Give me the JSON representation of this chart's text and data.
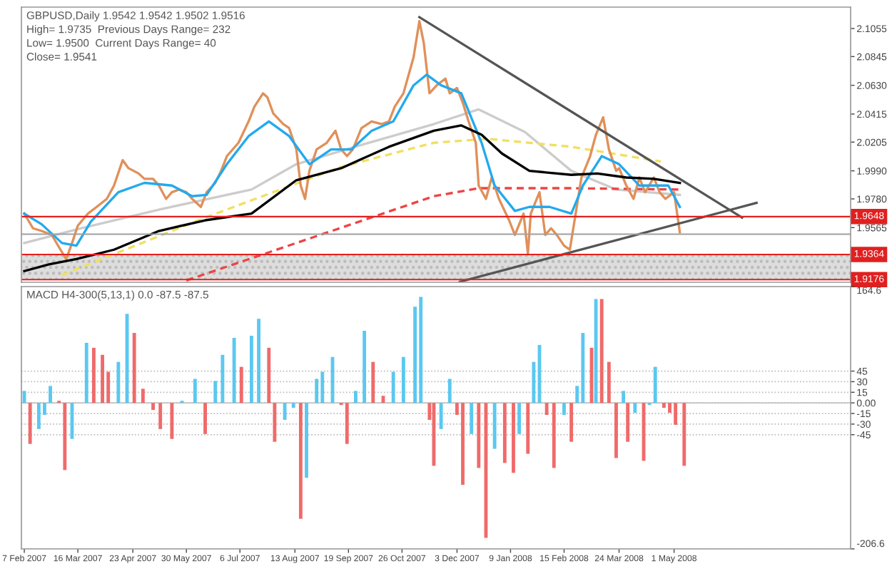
{
  "chart_data": [
    {
      "type": "line",
      "title": "GBPUSD,Daily 1.9542 1.9542 1.9502 1.9516",
      "annotations": [
        "High= 1.9735  Previous Days Range= 232",
        "Low= 1.9500  Current Days Range= 40",
        "Close= 1.9541"
      ],
      "xlim": [
        "2007-02-05",
        "2008-08-31"
      ],
      "ylim": [
        1.9156,
        2.1215
      ],
      "yticks": [
        2.1055,
        2.0845,
        {
          "value": 2.063,
          "label": "2.0630"
        },
        2.0415,
        2.0205,
        {
          "value": 1.999,
          "label": "1.9990"
        },
        {
          "value": 1.978,
          "label": "1.9780"
        },
        1.9565
      ],
      "tick_labels": "y",
      "grid": false,
      "marker": "none",
      "bands": [
        {
          "axis": "y",
          "from": 1.9176,
          "to": 1.9364,
          "color": "#dddddd"
        }
      ],
      "ref_lines": [
        {
          "axis": "y",
          "value": 1.9648,
          "label": "1.9648",
          "color": "#e02020"
        },
        {
          "axis": "y",
          "value": 1.9364,
          "label": "1.9364",
          "color": "#e02020"
        },
        {
          "axis": "y",
          "value": 1.9176,
          "label": "1.9176",
          "color": "#e02020"
        },
        {
          "axis": "y",
          "value": 1.9516,
          "color": "#a0a0a0"
        }
      ],
      "series": [
        {
          "color": "#cccccc",
          "line_style": "solid",
          "x": [
            "2007-02-07",
            "2007-03-18",
            "2007-05-11",
            "2007-07-14",
            "2007-08-14",
            "2007-10-03",
            "2007-11-17",
            "2007-12-18",
            "2008-01-19",
            "2008-02-20",
            "2008-03-22",
            "2008-05-05"
          ],
          "values": [
            1.945,
            1.956,
            1.97,
            1.985,
            2.004,
            2.02,
            2.034,
            2.045,
            2.028,
            1.999,
            1.985,
            1.981
          ]
        },
        {
          "color": "#f0e060",
          "line_style": "dashed",
          "x": [
            "2007-03-05",
            "2007-06-12",
            "2007-09-14",
            "2007-11-17",
            "2007-12-24",
            "2008-02-20",
            "2008-04-22"
          ],
          "values": [
            1.921,
            1.964,
            2.002,
            2.02,
            2.023,
            2.017,
            2.006
          ]
        },
        {
          "color": "#ee4444",
          "line_style": "dashed",
          "x": [
            "2007-05-30",
            "2007-08-14",
            "2007-11-17",
            "2007-12-18",
            "2008-02-20",
            "2008-05-05"
          ],
          "values": [
            1.917,
            1.945,
            1.98,
            1.986,
            1.986,
            1.985
          ]
        },
        {
          "color": "#e0905a",
          "line_style": "solid",
          "x": [
            "2007-02-07",
            "2007-02-13",
            "2007-02-19",
            "2007-02-26",
            "2007-03-04",
            "2007-03-08",
            "2007-03-12",
            "2007-03-16",
            "2007-03-23",
            "2007-03-29",
            "2007-04-05",
            "2007-04-10",
            "2007-04-16",
            "2007-04-20",
            "2007-04-27",
            "2007-05-01",
            "2007-05-07",
            "2007-05-11",
            "2007-05-16",
            "2007-05-20",
            "2007-05-25",
            "2007-05-30",
            "2007-06-03",
            "2007-06-09",
            "2007-06-13",
            "2007-06-19",
            "2007-06-23",
            "2007-06-27",
            "2007-07-05",
            "2007-07-12",
            "2007-07-16",
            "2007-07-22",
            "2007-07-25",
            "2007-07-29",
            "2007-08-05",
            "2007-08-09",
            "2007-08-14",
            "2007-08-17",
            "2007-08-20",
            "2007-08-23",
            "2007-08-28",
            "2007-09-04",
            "2007-09-10",
            "2007-09-14",
            "2007-09-18",
            "2007-09-22",
            "2007-09-28",
            "2007-10-05",
            "2007-10-12",
            "2007-10-17",
            "2007-10-21",
            "2007-10-27",
            "2007-11-03",
            "2007-11-07",
            "2007-11-10",
            "2007-11-14",
            "2007-11-19",
            "2007-11-25",
            "2007-11-28",
            "2007-12-03",
            "2007-12-07",
            "2007-12-11",
            "2007-12-16",
            "2007-12-18",
            "2007-12-23",
            "2007-12-27",
            "2008-01-01",
            "2008-01-08",
            "2008-01-12",
            "2008-01-18",
            "2008-01-21",
            "2008-01-23",
            "2008-01-29",
            "2008-02-02",
            "2008-02-06",
            "2008-02-10",
            "2008-02-15",
            "2008-02-19",
            "2008-02-23",
            "2008-02-27",
            "2008-03-04",
            "2008-03-08",
            "2008-03-13",
            "2008-03-17",
            "2008-03-22",
            "2008-03-24",
            "2008-03-29",
            "2008-04-03",
            "2008-04-07",
            "2008-04-11",
            "2008-04-17",
            "2008-04-21",
            "2008-04-25",
            "2008-05-01",
            "2008-05-05"
          ],
          "values": [
            1.967,
            1.956,
            1.954,
            1.951,
            1.94,
            1.933,
            1.945,
            1.958,
            1.967,
            1.972,
            1.978,
            1.988,
            2.007,
            2.001,
            1.997,
            1.993,
            1.993,
            1.988,
            1.978,
            1.983,
            1.985,
            1.983,
            1.978,
            1.972,
            1.983,
            1.99,
            1.999,
            2.01,
            2.02,
            2.036,
            2.047,
            2.057,
            2.054,
            2.042,
            2.034,
            2.031,
            2.015,
            1.988,
            1.978,
            1.999,
            2.015,
            2.02,
            2.029,
            2.015,
            2.01,
            2.015,
            2.031,
            2.036,
            2.034,
            2.036,
            2.047,
            2.057,
            2.084,
            2.111,
            2.095,
            2.057,
            2.063,
            2.068,
            2.057,
            2.061,
            2.05,
            2.036,
            2.02,
            1.988,
            1.978,
            1.994,
            1.978,
            1.962,
            1.951,
            1.967,
            1.937,
            1.967,
            1.983,
            1.951,
            1.956,
            1.951,
            1.943,
            1.94,
            1.967,
            1.994,
            2.01,
            2.026,
            2.039,
            2.015,
            1.999,
            2.001,
            1.988,
            1.978,
            1.994,
            1.983,
            1.994,
            1.983,
            1.978,
            1.983,
            1.953
          ]
        },
        {
          "color": "#22aaee",
          "line_style": "solid",
          "x": [
            "2007-02-07",
            "2007-02-19",
            "2007-03-05",
            "2007-03-15",
            "2007-03-25",
            "2007-04-13",
            "2007-05-01",
            "2007-05-20",
            "2007-06-03",
            "2007-06-13",
            "2007-06-27",
            "2007-07-12",
            "2007-07-26",
            "2007-08-09",
            "2007-08-19",
            "2007-08-23",
            "2007-09-07",
            "2007-09-21",
            "2007-10-05",
            "2007-10-20",
            "2007-11-03",
            "2007-11-12",
            "2007-11-22",
            "2007-12-06",
            "2007-12-20",
            "2007-12-29",
            "2008-01-12",
            "2008-01-22",
            "2008-02-05",
            "2008-02-20",
            "2008-02-28",
            "2008-03-12",
            "2008-03-24",
            "2008-04-07",
            "2008-04-27",
            "2008-05-05"
          ],
          "values": [
            1.967,
            1.959,
            1.945,
            1.943,
            1.961,
            1.983,
            1.99,
            1.988,
            1.98,
            1.981,
            2.004,
            2.025,
            2.036,
            2.025,
            2.01,
            2.004,
            2.015,
            2.015,
            2.029,
            2.036,
            2.063,
            2.071,
            2.063,
            2.057,
            2.02,
            1.988,
            1.969,
            1.972,
            1.972,
            1.967,
            1.988,
            2.01,
            2.004,
            1.988,
            1.988,
            1.972
          ]
        },
        {
          "color": "#000000",
          "line_style": "solid",
          "x": [
            "2007-02-07",
            "2007-02-24",
            "2007-03-15",
            "2007-04-10",
            "2007-05-11",
            "2007-06-12",
            "2007-07-14",
            "2007-08-14",
            "2007-09-14",
            "2007-10-17",
            "2007-11-17",
            "2007-12-06",
            "2007-12-20",
            "2008-01-03",
            "2008-01-22",
            "2008-02-20",
            "2008-03-09",
            "2008-03-29",
            "2008-04-17",
            "2008-05-05"
          ],
          "values": [
            1.924,
            1.929,
            1.933,
            1.94,
            1.954,
            1.962,
            1.967,
            1.992,
            2.001,
            2.017,
            2.029,
            2.033,
            2.026,
            2.012,
            1.999,
            1.996,
            1.997,
            1.994,
            1.993,
            1.99
          ]
        },
        {
          "color": "#555555",
          "line_style": "solid",
          "x": [
            "2007-11-07",
            "2008-06-17"
          ],
          "values": [
            2.114,
            1.964
          ]
        },
        {
          "color": "#555555",
          "line_style": "solid",
          "x": [
            "2007-12-05",
            "2008-06-27"
          ],
          "values": [
            1.916,
            1.975
          ]
        }
      ]
    },
    {
      "type": "bar",
      "title": "MACD H4-300(5,13,1) 0.0 -87.5 -87.5",
      "xlim": [
        "2007-02-05",
        "2008-08-31"
      ],
      "ylim": [
        -206.6,
        164.6
      ],
      "xticks": [
        {
          "value": "2007-02-07",
          "label": "7 Feb 2007"
        },
        {
          "value": "2007-03-16",
          "label": "16 Mar 2007"
        },
        {
          "value": "2007-04-23",
          "label": "23 Apr 2007"
        },
        {
          "value": "2007-05-30",
          "label": "30 May 2007"
        },
        {
          "value": "2007-07-06",
          "label": "6 Jul 2007"
        },
        {
          "value": "2007-08-13",
          "label": "13 Aug 2007"
        },
        {
          "value": "2007-09-19",
          "label": "19 Sep 2007"
        },
        {
          "value": "2007-10-26",
          "label": "26 Oct 2007"
        },
        {
          "value": "2007-12-03",
          "label": "3 Dec 2007"
        },
        {
          "value": "2008-01-09",
          "label": "9 Jan 2008"
        },
        {
          "value": "2008-02-15",
          "label": "15 Feb 2008"
        },
        {
          "value": "2008-03-24",
          "label": "24 Mar 2008"
        },
        {
          "value": "2008-05-01",
          "label": "1 May 2008"
        }
      ],
      "yticks": [
        164.6,
        45,
        30,
        15,
        {
          "value": 0,
          "label": "0.00"
        },
        -15,
        -30,
        -45,
        -206.6
      ],
      "grid": "y",
      "x": [
        "2007-02-07",
        "2007-02-11",
        "2007-02-17",
        "2007-02-21",
        "2007-02-25",
        "2007-03-03",
        "2007-03-07",
        "2007-03-12",
        "2007-03-16",
        "2007-03-22",
        "2007-03-27",
        "2007-04-02",
        "2007-04-06",
        "2007-04-13",
        "2007-04-19",
        "2007-04-24",
        "2007-04-30",
        "2007-05-07",
        "2007-05-12",
        "2007-05-20",
        "2007-05-27",
        "2007-06-05",
        "2007-06-12",
        "2007-06-19",
        "2007-06-24",
        "2007-07-02",
        "2007-07-07",
        "2007-07-14",
        "2007-07-19",
        "2007-07-26",
        "2007-07-30",
        "2007-08-06",
        "2007-08-12",
        "2007-08-17",
        "2007-08-21",
        "2007-08-28",
        "2007-09-01",
        "2007-09-08",
        "2007-09-14",
        "2007-09-18",
        "2007-09-24",
        "2007-09-30",
        "2007-10-06",
        "2007-10-13",
        "2007-10-20",
        "2007-10-27",
        "2007-11-04",
        "2007-11-08",
        "2007-11-14",
        "2007-11-17",
        "2007-11-22",
        "2007-11-28",
        "2007-12-03",
        "2007-12-07",
        "2007-12-13",
        "2007-12-18",
        "2007-12-23",
        "2007-12-29",
        "2008-01-05",
        "2008-01-11",
        "2008-01-15",
        "2008-01-21",
        "2008-01-25",
        "2008-01-29",
        "2008-02-03",
        "2008-02-08",
        "2008-02-15",
        "2008-02-20",
        "2008-02-24",
        "2008-02-28",
        "2008-03-05",
        "2008-03-08",
        "2008-03-12",
        "2008-03-17",
        "2008-03-22",
        "2008-03-27",
        "2008-03-30",
        "2008-04-04",
        "2008-04-10",
        "2008-04-14",
        "2008-04-18",
        "2008-04-24",
        "2008-04-28",
        "2008-05-02",
        "2008-05-08"
      ],
      "values": [
        17,
        -58,
        -37,
        -17,
        24,
        3,
        -95,
        -51,
        0,
        85,
        78,
        68,
        44,
        58,
        126,
        99,
        20,
        -10,
        -37,
        -51,
        3,
        34,
        -44,
        31,
        68,
        92,
        51,
        95,
        119,
        78,
        -55,
        -24,
        -7,
        -164,
        -106,
        34,
        44,
        65,
        -3,
        -58,
        17,
        102,
        58,
        10,
        44,
        65,
        136,
        150,
        -24,
        -89,
        -37,
        34,
        -17,
        -116,
        -44,
        -92,
        -191,
        -65,
        -85,
        -99,
        -44,
        -72,
        58,
        82,
        -17,
        -92,
        -17,
        -55,
        24,
        99,
        78,
        147,
        147,
        58,
        -78,
        17,
        -55,
        -14,
        -82,
        -3,
        51,
        -7,
        -14,
        -31,
        -89
      ],
      "colors": [
        "#5bc8f0",
        "#f06a6a",
        "#5bc8f0",
        "#5bc8f0",
        "#5bc8f0",
        "#f06a6a",
        "#f06a6a",
        "#5bc8f0",
        "#5bc8f0",
        "#5bc8f0",
        "#f06a6a",
        "#f06a6a",
        "#f06a6a",
        "#5bc8f0",
        "#5bc8f0",
        "#f06a6a",
        "#f06a6a",
        "#f06a6a",
        "#f06a6a",
        "#f06a6a",
        "#5bc8f0",
        "#5bc8f0",
        "#f06a6a",
        "#5bc8f0",
        "#5bc8f0",
        "#5bc8f0",
        "#f06a6a",
        "#5bc8f0",
        "#5bc8f0",
        "#f06a6a",
        "#f06a6a",
        "#5bc8f0",
        "#5bc8f0",
        "#f06a6a",
        "#5bc8f0",
        "#5bc8f0",
        "#5bc8f0",
        "#5bc8f0",
        "#f06a6a",
        "#f06a6a",
        "#5bc8f0",
        "#5bc8f0",
        "#f06a6a",
        "#f06a6a",
        "#5bc8f0",
        "#5bc8f0",
        "#5bc8f0",
        "#5bc8f0",
        "#f06a6a",
        "#f06a6a",
        "#5bc8f0",
        "#5bc8f0",
        "#f06a6a",
        "#f06a6a",
        "#5bc8f0",
        "#f06a6a",
        "#f06a6a",
        "#5bc8f0",
        "#f06a6a",
        "#f06a6a",
        "#5bc8f0",
        "#f06a6a",
        "#5bc8f0",
        "#5bc8f0",
        "#f06a6a",
        "#f06a6a",
        "#5bc8f0",
        "#f06a6a",
        "#5bc8f0",
        "#5bc8f0",
        "#f06a6a",
        "#5bc8f0",
        "#f06a6a",
        "#f06a6a",
        "#f06a6a",
        "#5bc8f0",
        "#f06a6a",
        "#5bc8f0",
        "#f06a6a",
        "#5bc8f0",
        "#5bc8f0",
        "#f06a6a",
        "#f06a6a",
        "#f06a6a",
        "#f06a6a"
      ]
    }
  ]
}
